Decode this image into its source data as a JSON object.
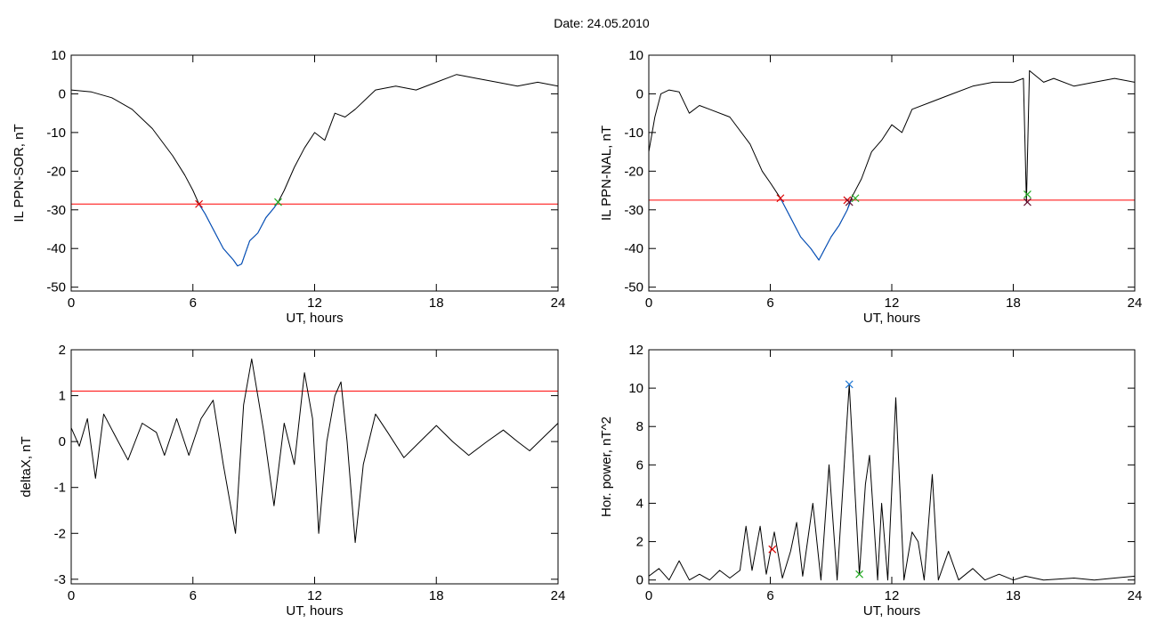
{
  "page": {
    "title": "Date:  24.05.2010"
  },
  "colors": {
    "trace": "#000000",
    "threshold": "#ff0000",
    "segment": "#0055cc",
    "marker_red": "#dd0000",
    "marker_green": "#22aa22",
    "marker_blue": "#1f77d4",
    "marker_dark": "#661133"
  },
  "chart_data": [
    {
      "id": "p1",
      "type": "line",
      "ylabel": "IL PPN-SOR, nT",
      "xlabel": "UT, hours",
      "xlim": [
        0,
        24
      ],
      "ylim": [
        -51,
        10
      ],
      "xticks": [
        0,
        6,
        12,
        18,
        24
      ],
      "yticks": [
        10,
        0,
        -10,
        -20,
        -30,
        -40,
        -50
      ],
      "threshold": -28.5,
      "series": [
        {
          "color": "#000000",
          "points": [
            [
              0,
              1
            ],
            [
              1,
              0.5
            ],
            [
              2,
              -1
            ],
            [
              3,
              -4
            ],
            [
              4,
              -9
            ],
            [
              5,
              -16
            ],
            [
              5.6,
              -21
            ],
            [
              6,
              -25
            ],
            [
              6.3,
              -28.5
            ],
            [
              6.6,
              -31
            ],
            [
              7,
              -35
            ],
            [
              7.5,
              -40
            ],
            [
              8,
              -43
            ],
            [
              8.2,
              -44.5
            ],
            [
              8.4,
              -44
            ],
            [
              8.6,
              -41
            ],
            [
              8.8,
              -38
            ],
            [
              9.2,
              -36
            ],
            [
              9.6,
              -32
            ],
            [
              10,
              -29.5
            ],
            [
              10.2,
              -28
            ],
            [
              10.5,
              -25
            ],
            [
              11,
              -19
            ],
            [
              11.5,
              -14
            ],
            [
              12,
              -10
            ],
            [
              12.5,
              -12
            ],
            [
              13,
              -5
            ],
            [
              13.5,
              -6
            ],
            [
              14,
              -4
            ],
            [
              15,
              1
            ],
            [
              16,
              2
            ],
            [
              17,
              1
            ],
            [
              18,
              3
            ],
            [
              19,
              5
            ],
            [
              20,
              4
            ],
            [
              21,
              3
            ],
            [
              22,
              2
            ],
            [
              23,
              3
            ],
            [
              24,
              2
            ]
          ]
        },
        {
          "color": "#0055cc",
          "points": [
            [
              6.3,
              -28.5
            ],
            [
              6.6,
              -31
            ],
            [
              7,
              -35
            ],
            [
              7.5,
              -40
            ],
            [
              8,
              -43
            ],
            [
              8.2,
              -44.5
            ],
            [
              8.4,
              -44
            ],
            [
              8.6,
              -41
            ],
            [
              8.8,
              -38
            ],
            [
              9.2,
              -36
            ],
            [
              9.6,
              -32
            ],
            [
              10,
              -29.5
            ],
            [
              10.2,
              -28
            ]
          ]
        }
      ],
      "markers": [
        {
          "x": 6.3,
          "y": -28.5,
          "color": "#dd0000"
        },
        {
          "x": 10.2,
          "y": -28,
          "color": "#22aa22"
        }
      ]
    },
    {
      "id": "p2",
      "type": "line",
      "ylabel": "IL PPN-NAL, nT",
      "xlabel": "UT, hours",
      "xlim": [
        0,
        24
      ],
      "ylim": [
        -51,
        10
      ],
      "xticks": [
        0,
        6,
        12,
        18,
        24
      ],
      "yticks": [
        10,
        0,
        -10,
        -20,
        -30,
        -40,
        -50
      ],
      "threshold": -27.5,
      "series": [
        {
          "color": "#000000",
          "points": [
            [
              0,
              -15
            ],
            [
              0.3,
              -6
            ],
            [
              0.6,
              0
            ],
            [
              1,
              1
            ],
            [
              1.5,
              0.5
            ],
            [
              2,
              -5
            ],
            [
              2.5,
              -3
            ],
            [
              3,
              -4
            ],
            [
              4,
              -6
            ],
            [
              5,
              -13
            ],
            [
              5.6,
              -20
            ],
            [
              6,
              -23
            ],
            [
              6.5,
              -27
            ],
            [
              7,
              -32
            ],
            [
              7.5,
              -37
            ],
            [
              8,
              -40
            ],
            [
              8.4,
              -43
            ],
            [
              8.6,
              -41
            ],
            [
              9,
              -37
            ],
            [
              9.4,
              -34
            ],
            [
              9.8,
              -30
            ],
            [
              10,
              -27
            ],
            [
              10.5,
              -22
            ],
            [
              11,
              -15
            ],
            [
              11.5,
              -12
            ],
            [
              12,
              -8
            ],
            [
              12.5,
              -10
            ],
            [
              13,
              -4
            ],
            [
              14,
              -2
            ],
            [
              15,
              0
            ],
            [
              16,
              2
            ],
            [
              17,
              3
            ],
            [
              18,
              3
            ],
            [
              18.5,
              4
            ],
            [
              18.65,
              -28
            ],
            [
              18.8,
              6
            ],
            [
              19.5,
              3
            ],
            [
              20,
              4
            ],
            [
              21,
              2
            ],
            [
              22,
              3
            ],
            [
              23,
              4
            ],
            [
              24,
              3
            ]
          ]
        },
        {
          "color": "#0055cc",
          "points": [
            [
              6.5,
              -27
            ],
            [
              7,
              -32
            ],
            [
              7.5,
              -37
            ],
            [
              8,
              -40
            ],
            [
              8.4,
              -43
            ],
            [
              8.6,
              -41
            ],
            [
              9,
              -37
            ],
            [
              9.4,
              -34
            ],
            [
              9.8,
              -30
            ],
            [
              10,
              -27.5
            ]
          ]
        }
      ],
      "markers": [
        {
          "x": 6.5,
          "y": -27,
          "color": "#dd0000"
        },
        {
          "x": 9.8,
          "y": -27.5,
          "color": "#dd0000"
        },
        {
          "x": 10.2,
          "y": -27,
          "color": "#22aa22"
        },
        {
          "x": 9.9,
          "y": -28,
          "color": "#661133"
        },
        {
          "x": 18.7,
          "y": -26,
          "color": "#22aa22"
        },
        {
          "x": 18.7,
          "y": -28,
          "color": "#661133"
        }
      ]
    },
    {
      "id": "p3",
      "type": "line",
      "ylabel": "deltaX, nT",
      "xlabel": "UT, hours",
      "xlim": [
        0,
        24
      ],
      "ylim": [
        -3.1,
        2
      ],
      "xticks": [
        0,
        6,
        12,
        18,
        24
      ],
      "yticks": [
        2,
        1,
        0,
        -1,
        -2,
        -3
      ],
      "threshold": 1.1,
      "series": [
        {
          "color": "#000000",
          "points": [
            [
              0,
              0.3
            ],
            [
              0.4,
              -0.1
            ],
            [
              0.8,
              0.5
            ],
            [
              1.2,
              -0.8
            ],
            [
              1.6,
              0.6
            ],
            [
              2.2,
              0.1
            ],
            [
              2.8,
              -0.4
            ],
            [
              3.5,
              0.4
            ],
            [
              4.2,
              0.2
            ],
            [
              4.6,
              -0.3
            ],
            [
              5.2,
              0.5
            ],
            [
              5.8,
              -0.3
            ],
            [
              6.4,
              0.5
            ],
            [
              7,
              0.9
            ],
            [
              7.5,
              -0.5
            ],
            [
              8.1,
              -2
            ],
            [
              8.5,
              0.8
            ],
            [
              8.9,
              1.8
            ],
            [
              9.5,
              0.2
            ],
            [
              10,
              -1.4
            ],
            [
              10.5,
              0.4
            ],
            [
              11,
              -0.5
            ],
            [
              11.5,
              1.5
            ],
            [
              11.9,
              0.5
            ],
            [
              12.2,
              -2
            ],
            [
              12.6,
              0
            ],
            [
              13,
              1
            ],
            [
              13.3,
              1.3
            ],
            [
              13.6,
              0
            ],
            [
              14,
              -2.2
            ],
            [
              14.4,
              -0.5
            ],
            [
              15,
              0.6
            ],
            [
              15.6,
              0.2
            ],
            [
              16.4,
              -0.35
            ],
            [
              17.2,
              0
            ],
            [
              18,
              0.35
            ],
            [
              18.8,
              0
            ],
            [
              19.6,
              -0.3
            ],
            [
              20.5,
              0
            ],
            [
              21.3,
              0.25
            ],
            [
              22,
              0
            ],
            [
              22.6,
              -0.2
            ],
            [
              23.3,
              0.1
            ],
            [
              24,
              0.4
            ]
          ]
        }
      ],
      "markers": []
    },
    {
      "id": "p4",
      "type": "line",
      "ylabel": "Hor. power, nT^2",
      "xlabel": "UT, hours",
      "xlim": [
        0,
        24
      ],
      "ylim": [
        -0.2,
        12
      ],
      "xticks": [
        0,
        6,
        12,
        18,
        24
      ],
      "yticks": [
        0,
        2,
        4,
        6,
        8,
        10,
        12
      ],
      "series": [
        {
          "color": "#000000",
          "points": [
            [
              0,
              0.2
            ],
            [
              0.5,
              0.6
            ],
            [
              1,
              0
            ],
            [
              1.5,
              1
            ],
            [
              2,
              0
            ],
            [
              2.5,
              0.3
            ],
            [
              3,
              0
            ],
            [
              3.5,
              0.5
            ],
            [
              4,
              0.1
            ],
            [
              4.5,
              0.5
            ],
            [
              4.8,
              2.8
            ],
            [
              5.1,
              0.5
            ],
            [
              5.5,
              2.8
            ],
            [
              5.8,
              0.3
            ],
            [
              6.2,
              2.5
            ],
            [
              6.6,
              0.1
            ],
            [
              7,
              1.5
            ],
            [
              7.3,
              3
            ],
            [
              7.6,
              0.2
            ],
            [
              8.1,
              4
            ],
            [
              8.5,
              0
            ],
            [
              8.9,
              6
            ],
            [
              9.3,
              0
            ],
            [
              9.9,
              10.2
            ],
            [
              10.4,
              0.3
            ],
            [
              10.7,
              5
            ],
            [
              10.9,
              6.5
            ],
            [
              11.3,
              0
            ],
            [
              11.5,
              4
            ],
            [
              11.8,
              0
            ],
            [
              12.2,
              9.5
            ],
            [
              12.6,
              0
            ],
            [
              13,
              2.5
            ],
            [
              13.3,
              2
            ],
            [
              13.6,
              0
            ],
            [
              14,
              5.5
            ],
            [
              14.3,
              0
            ],
            [
              14.8,
              1.5
            ],
            [
              15.3,
              0
            ],
            [
              16,
              0.6
            ],
            [
              16.6,
              0
            ],
            [
              17.3,
              0.3
            ],
            [
              18,
              0
            ],
            [
              18.6,
              0.2
            ],
            [
              19.5,
              0
            ],
            [
              21,
              0.1
            ],
            [
              22,
              0
            ],
            [
              23,
              0.1
            ],
            [
              24,
              0.2
            ]
          ]
        }
      ],
      "markers": [
        {
          "x": 6.1,
          "y": 1.6,
          "color": "#dd0000"
        },
        {
          "x": 9.9,
          "y": 10.2,
          "color": "#1f77d4"
        },
        {
          "x": 10.4,
          "y": 0.3,
          "color": "#22aa22"
        }
      ]
    }
  ]
}
